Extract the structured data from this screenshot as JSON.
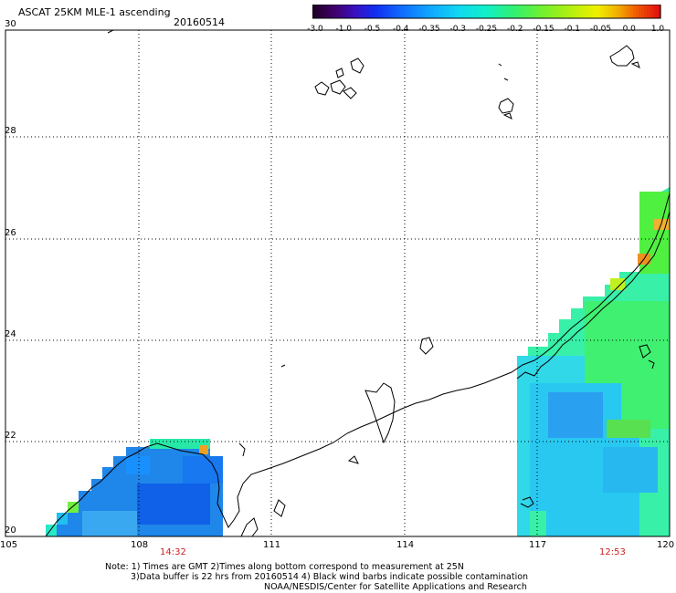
{
  "header": {
    "title": "ASCAT 25KM MLE-1 ascending",
    "date": "20160514"
  },
  "colorbar": {
    "labels": [
      "-3.0",
      "-1.0",
      "-0.5",
      "-0.4",
      "-0.35",
      "-0.3",
      "-0.25",
      "-0.2",
      "-0.15",
      "-0.1",
      "-0.05",
      "0.0",
      "1.0"
    ],
    "colors": [
      "#2a0030",
      "#4a0080",
      "#3030e0",
      "#1080ff",
      "#10b0ff",
      "#10e0e0",
      "#10f0a0",
      "#40f040",
      "#80f020",
      "#c0f010",
      "#f0f000",
      "#f08000",
      "#e02000"
    ]
  },
  "axes": {
    "x_labels": [
      "105",
      "108",
      "111",
      "114",
      "117",
      "120"
    ],
    "y_labels": [
      "30",
      "28",
      "26",
      "24",
      "22",
      "20"
    ]
  },
  "times": {
    "left": "14:32",
    "right": "12:53"
  },
  "notes": [
    "Note: 1) Times are GMT 2)Times along bottom correspond to measurement at 25N",
    "3)Data buffer is 22 hrs from 20160514 4) Black wind barbs indicate possible contamination",
    "NOAA/NESDIS/Center for Satellite Applications and Research"
  ]
}
